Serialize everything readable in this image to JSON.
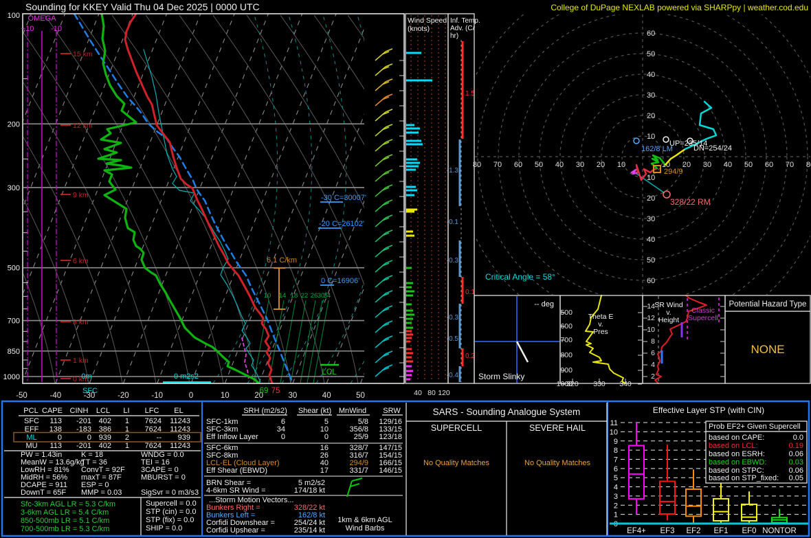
{
  "header": {
    "title": "Sounding for KKEY Valid  Thu 04 Dec 2025 | 0000 UTC",
    "brand": "College of DuPage NEXLAB powered via SHARPpy | weather.cod.edu"
  },
  "skewt": {
    "pressures": [
      "100",
      "200",
      "300",
      "500",
      "700",
      "850",
      "1000"
    ],
    "heights": [
      "15 km",
      "12 km",
      "9 km",
      "6 km",
      "3 km",
      "1 km",
      "0 km"
    ],
    "omega_label": "OMEGA",
    "omega_plus": "+10",
    "omega_minus": "-10",
    "temps": [
      "-50",
      "-40",
      "-30",
      "-20",
      "-10",
      "0",
      "10",
      "20",
      "30",
      "40",
      "50"
    ],
    "mixing": [
      "10",
      "14",
      "18",
      "22",
      "26",
      "30",
      "34"
    ],
    "iso30": "-30 C=30007'",
    "iso20": "-20 C=26102'",
    "iso0": "0 C=16906'",
    "lapse": "6.1 C/km",
    "lcl": "LCL",
    "eff_hgt": "0m",
    "eff_srh": "0 m2s2",
    "sfc": "SFC",
    "dewpoint_f": "69",
    "temp_f": "75"
  },
  "wind_panel": {
    "title1": "Wind Speed",
    "title2": "(knots)",
    "ticks": [
      "40",
      "80",
      "120"
    ]
  },
  "adv_panel": {
    "title1": "Inf. Temp.",
    "title2": "Adv. (C/",
    "title3": "hr)",
    "labels": [
      {
        "value": "1.5",
        "color": "#ff2a2a"
      },
      {
        "value": "-1.3",
        "color": "#5b9bd5"
      },
      {
        "value": "-0.1",
        "color": "#5b9bd5"
      },
      {
        "value": "-0.3",
        "color": "#5b9bd5"
      },
      {
        "value": "0.1",
        "color": "#ff2a2a"
      },
      {
        "value": "-0.3",
        "color": "#5b9bd5"
      },
      {
        "value": "-0.5",
        "color": "#5b9bd5"
      },
      {
        "value": "0.2",
        "color": "#ff2a2a"
      },
      {
        "value": "-0.4",
        "color": "#5b9bd5"
      }
    ]
  },
  "hodo": {
    "up_labels": [
      "60",
      "50",
      "40",
      "30",
      "20",
      "10"
    ],
    "down_labels": [
      "10",
      "20",
      "30",
      "40",
      "50",
      "60"
    ],
    "left_labels": [
      "80",
      "70",
      "60",
      "50",
      "40",
      "30",
      "20",
      "10"
    ],
    "right_labels": [
      "10",
      "20",
      "30",
      "40",
      "50",
      "60",
      "70",
      "80"
    ],
    "lm": "162/8 LM",
    "up": "UP=235/14",
    "dn": "DN=254/24",
    "mean": "294/9",
    "rm": "328/22 RM",
    "critical": "Critical Angle = 58°"
  },
  "slinky": {
    "title": "Storm Slinky",
    "deg": "-- deg"
  },
  "thetae": {
    "t1": "Theta E",
    "t2": "v.",
    "t3": "Pres",
    "ylabels": [
      "500",
      "600",
      "700",
      "800",
      "900",
      "1000"
    ],
    "xlabels": [
      "320",
      "330",
      "340"
    ]
  },
  "srwind": {
    "t1": "SR Wind",
    "t2": "v.",
    "t3": "Height",
    "ylabels": [
      "14",
      "12",
      "10",
      "8",
      "6",
      "4",
      "2"
    ],
    "c1": "Classic",
    "c2": "Supercell"
  },
  "hazard": {
    "title": "Potential Hazard Type",
    "value": "NONE"
  },
  "parcels": {
    "headers": [
      "PCL",
      "CAPE",
      "CINH",
      "LCL",
      "LI",
      "LFC",
      "EL"
    ],
    "rows": [
      {
        "name": "SFC",
        "cape": "113",
        "cinh": "-201",
        "lcl": "402",
        "li": "1",
        "lfc": "7624",
        "el": "11243"
      },
      {
        "name": "EFF",
        "cape": "138",
        "cinh": "-183",
        "lcl": "386",
        "li": "1",
        "lfc": "7624",
        "el": "11243"
      },
      {
        "name": "ML",
        "cape": "0",
        "cinh": "0",
        "lcl": "939",
        "li": "2",
        "lfc": "--",
        "el": "939"
      },
      {
        "name": "MU",
        "cape": "113",
        "cinh": "-201",
        "lcl": "402",
        "li": "1",
        "lfc": "7624",
        "el": "11243"
      }
    ],
    "selected": "ML"
  },
  "thermo": {
    "col1": [
      "PW = 1.43in",
      "MeanW = 13.6g/kg",
      "LowRH = 81%",
      "MidRH = 56%",
      "DCAPE = 911",
      "DownT = 65F"
    ],
    "col2": [
      "K = 18",
      "TT = 36",
      "ConvT = 92F",
      "maxT = 87F",
      "ESP = 0",
      "MMP = 0.03"
    ],
    "col3": [
      "WNDG = 0.0",
      "TEI = 16",
      "3CAPE = 0",
      "MBURST = 0",
      "",
      "SigSvr = 0 m3/s3"
    ]
  },
  "lapse_rates": [
    "Sfc-3km AGL LR = 5.3 C/km",
    "3-6km AGL LR = 5.4 C/km",
    "850-500mb LR = 5.1 C/km",
    "700-500mb LR = 5.3 C/km"
  ],
  "indices": [
    "Supercell = 0.0",
    "STP (cin) = 0.0",
    "STP (fix) = 0.0",
    "SHIP = 0.0"
  ],
  "kinem": {
    "headers": [
      "SRH (m2/s2)",
      "Shear (kt)",
      "MnWind",
      "SRW"
    ],
    "rows": [
      {
        "label": "SFC-1km",
        "srh": "6",
        "shear": "5",
        "mnwind": "5/8",
        "srw": "129/16",
        "highlight": false
      },
      {
        "label": "SFC-3km",
        "srh": "34",
        "shear": "10",
        "mnwind": "356/8",
        "srw": "133/15",
        "highlight": false
      },
      {
        "label": "Eff Inflow Layer",
        "srh": "0",
        "shear": "0",
        "mnwind": "25/9",
        "srw": "123/18",
        "highlight": false
      },
      {
        "label": "SFC-6km",
        "srh": "",
        "shear": "16",
        "mnwind": "328/7",
        "srw": "147/15",
        "highlight": false
      },
      {
        "label": "SFC-8km",
        "srh": "",
        "shear": "26",
        "mnwind": "316/7",
        "srw": "154/15",
        "highlight": false
      },
      {
        "label": "LCL-EL (Cloud Layer)",
        "srh": "",
        "shear": "40",
        "mnwind": "294/9",
        "srw": "166/15",
        "highlight": true
      },
      {
        "label": "Eff Shear (EBWD)",
        "srh": "",
        "shear": "17",
        "mnwind": "331/7",
        "srw": "146/15",
        "highlight": false
      }
    ],
    "brn_label": "BRN Shear =",
    "brn": "5 m2/s2",
    "sr46_label": "4-6km SR Wind =",
    "sr46": "174/18 kt",
    "smv": "...Storm Motion Vectors...",
    "bunkers_r_label": "Bunkers Right =",
    "bunkers_r": "328/22 kt",
    "bunkers_l_label": "Bunkers Left =",
    "bunkers_l": "162/8 kt",
    "corfidi_d_label": "Corfidi Downshear =",
    "corfidi_d": "254/24 kt",
    "corfidi_u_label": "Corfidi Upshear =",
    "corfidi_u": "235/14 kt",
    "note1": "1km & 6km AGL",
    "note2": "Wind Barbs"
  },
  "sars": {
    "title": "SARS - Sounding Analogue System",
    "left": "SUPERCELL",
    "right": "SEVERE HAIL",
    "left_msg": "No Quality Matches",
    "right_msg": "No Quality Matches"
  },
  "stp": {
    "title": "Effective Layer STP (with CIN)",
    "boxes": [
      {
        "label": "EF4+",
        "color": "#ff00ff",
        "lo": 1.0,
        "q1": 2.7,
        "med": 5.4,
        "q3": 8.5,
        "hi": 11.0
      },
      {
        "label": "EF3",
        "color": "#ff1515",
        "lo": 0.35,
        "q1": 1.05,
        "med": 2.4,
        "q3": 4.6,
        "hi": 8.6
      },
      {
        "label": "EF2",
        "color": "#ff8c00",
        "lo": 0.1,
        "q1": 0.8,
        "med": 1.9,
        "q3": 3.75,
        "hi": 5.9
      },
      {
        "label": "EF1",
        "color": "#f2f215",
        "lo": 0.1,
        "q1": 0.3,
        "med": 1.3,
        "q3": 2.7,
        "hi": 4.6
      },
      {
        "label": "EF0",
        "color": "#f2f215",
        "lo": 0.05,
        "q1": 0.3,
        "med": 0.7,
        "q3": 2.1,
        "hi": 3.5
      },
      {
        "label": "NONTOR",
        "color": "#17dd17",
        "lo": 0.0,
        "q1": 0.1,
        "med": 0.4,
        "q3": 0.65,
        "hi": 1.6
      }
    ],
    "prob": {
      "title": "Prob EF2+ Given Supercell",
      "rows": [
        {
          "label": "based on CAPE:",
          "value": "0.0",
          "color": "#f0f0f0"
        },
        {
          "label": "based on LCL:",
          "value": "0.19",
          "color": "#ff2a2a"
        },
        {
          "label": "based on ESRH:",
          "value": "0.06",
          "color": "#f0f0f0"
        },
        {
          "label": "based on EBWD:",
          "value": "0.03",
          "color": "#17dd17"
        },
        {
          "label": "based on STPC:",
          "value": "0.06",
          "color": "#f0f0f0"
        },
        {
          "label": "based on STP_fixed:",
          "value": "0.05",
          "color": "#f0f0f0"
        }
      ]
    }
  }
}
